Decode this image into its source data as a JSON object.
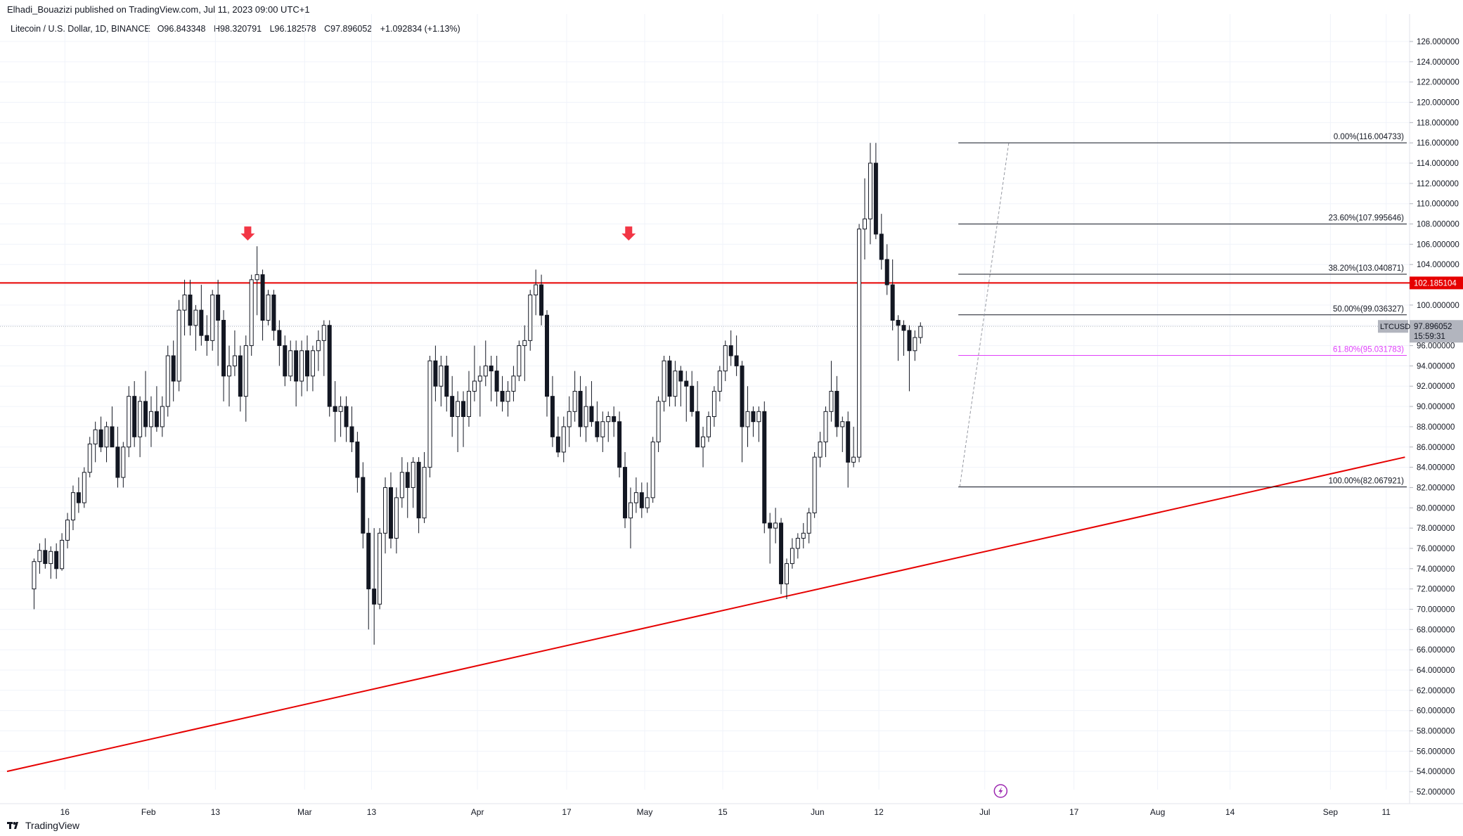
{
  "header": {
    "publish_line": "Elhadi_Bouazizi published on TradingView.com, Jul 11, 2023 09:00 UTC+1"
  },
  "legend": {
    "symbol_line": "Litecoin / U.S. Dollar, 1D, BINANCE",
    "open": "O96.843348",
    "high": "H98.320791",
    "low": "L96.182578",
    "close": "C97.896052",
    "change": "+1.092834 (+1.13%)"
  },
  "footer": {
    "brand": "TradingView"
  },
  "colors": {
    "up": "#ffffff",
    "down": "#131722",
    "outline": "#131722",
    "resistance": "#e60000",
    "trendline": "#e60000",
    "fib_line": "#131722",
    "fib_618": "#e040fb",
    "price_tag_bg": "#b2b5be",
    "grid": "#f0f3fa"
  },
  "chart_data": {
    "type": "candlestick",
    "symbol": "LTCUSD",
    "ylim": [
      52,
      127
    ],
    "y_ticks": [
      "126.000000",
      "124.000000",
      "122.000000",
      "120.000000",
      "118.000000",
      "116.000000",
      "114.000000",
      "112.000000",
      "110.000000",
      "108.000000",
      "106.000000",
      "104.000000",
      "102.000000",
      "100.000000",
      "98.000000",
      "96.000000",
      "94.000000",
      "92.000000",
      "90.000000",
      "88.000000",
      "86.000000",
      "84.000000",
      "82.000000",
      "80.000000",
      "78.000000",
      "76.000000",
      "74.000000",
      "72.000000",
      "70.000000",
      "68.000000",
      "66.000000",
      "64.000000",
      "62.000000",
      "60.000000",
      "58.000000",
      "56.000000",
      "54.000000",
      "52.000000"
    ],
    "y_tick_values": [
      126,
      124,
      122,
      120,
      118,
      116,
      114,
      112,
      110,
      108,
      106,
      104,
      102,
      100,
      98,
      96,
      94,
      92,
      90,
      88,
      86,
      84,
      82,
      80,
      78,
      76,
      74,
      72,
      70,
      68,
      66,
      64,
      62,
      60,
      58,
      56,
      54,
      52
    ],
    "x_ticks": [
      {
        "label": "16",
        "day": 10
      },
      {
        "label": "Feb",
        "day": 25
      },
      {
        "label": "13",
        "day": 37
      },
      {
        "label": "Mar",
        "day": 53
      },
      {
        "label": "13",
        "day": 65
      },
      {
        "label": "Apr",
        "day": 84
      },
      {
        "label": "17",
        "day": 100
      },
      {
        "label": "May",
        "day": 114
      },
      {
        "label": "15",
        "day": 128
      },
      {
        "label": "Jun",
        "day": 145
      },
      {
        "label": "12",
        "day": 156
      },
      {
        "label": "Jul",
        "day": 175
      },
      {
        "label": "17",
        "day": 191
      },
      {
        "label": "Aug",
        "day": 206
      },
      {
        "label": "14",
        "day": 219
      },
      {
        "label": "Sep",
        "day": 237
      },
      {
        "label": "11",
        "day": 247
      }
    ],
    "candles": [
      [
        72.0,
        75.0,
        70.0,
        74.7
      ],
      [
        74.7,
        76.5,
        73.5,
        75.8
      ],
      [
        75.8,
        77.0,
        74.0,
        74.5
      ],
      [
        74.5,
        76.2,
        73.0,
        75.7
      ],
      [
        75.7,
        76.5,
        73.0,
        74.0
      ],
      [
        74.0,
        77.5,
        73.8,
        76.8
      ],
      [
        76.8,
        79.5,
        76.0,
        78.8
      ],
      [
        78.8,
        82.2,
        77.8,
        81.5
      ],
      [
        81.5,
        83.0,
        79.5,
        80.5
      ],
      [
        80.5,
        84.0,
        80.0,
        83.5
      ],
      [
        83.5,
        87.0,
        83.0,
        86.3
      ],
      [
        86.3,
        88.5,
        84.5,
        87.7
      ],
      [
        87.7,
        89.0,
        85.5,
        86.0
      ],
      [
        86.0,
        88.5,
        84.5,
        88.0
      ],
      [
        88.0,
        90.0,
        86.0,
        86.0
      ],
      [
        86.0,
        88.0,
        82.0,
        83.0
      ],
      [
        83.0,
        86.5,
        82.0,
        86.0
      ],
      [
        86.0,
        92.0,
        85.0,
        91.0
      ],
      [
        91.0,
        92.5,
        86.0,
        87.0
      ],
      [
        87.0,
        91.0,
        85.0,
        90.5
      ],
      [
        90.5,
        93.5,
        87.0,
        88.0
      ],
      [
        88.0,
        91.0,
        86.0,
        89.5
      ],
      [
        89.5,
        92.0,
        87.5,
        88.0
      ],
      [
        88.0,
        91.0,
        87.0,
        90.0
      ],
      [
        90.0,
        96.0,
        89.0,
        95.0
      ],
      [
        95.0,
        96.5,
        90.5,
        92.5
      ],
      [
        92.5,
        100.5,
        91.5,
        99.5
      ],
      [
        99.5,
        102.5,
        97.0,
        101.0
      ],
      [
        101.0,
        102.5,
        97.0,
        98.0
      ],
      [
        98.0,
        100.0,
        95.5,
        99.5
      ],
      [
        99.5,
        102.0,
        96.0,
        97.0
      ],
      [
        97.0,
        99.0,
        95.0,
        96.5
      ],
      [
        96.5,
        101.5,
        95.5,
        101.0
      ],
      [
        101.0,
        102.5,
        94.0,
        98.5
      ],
      [
        98.5,
        99.5,
        90.5,
        93.0
      ],
      [
        93.0,
        96.0,
        90.0,
        94.0
      ],
      [
        94.0,
        97.5,
        93.0,
        95.0
      ],
      [
        95.0,
        96.0,
        89.5,
        91.0
      ],
      [
        91.0,
        97.0,
        88.5,
        96.0
      ],
      [
        96.0,
        103.0,
        95.0,
        102.5
      ],
      [
        102.5,
        105.8,
        99.0,
        103.0
      ],
      [
        103.0,
        103.5,
        96.5,
        98.5
      ],
      [
        98.5,
        101.5,
        98.0,
        101.0
      ],
      [
        101.0,
        101.5,
        96.5,
        97.5
      ],
      [
        97.5,
        98.5,
        94.0,
        96.0
      ],
      [
        96.0,
        97.0,
        92.0,
        93.0
      ],
      [
        93.0,
        96.5,
        92.5,
        95.5
      ],
      [
        95.5,
        96.5,
        90.0,
        92.5
      ],
      [
        92.5,
        96.5,
        91.0,
        95.5
      ],
      [
        95.5,
        97.0,
        91.5,
        93.0
      ],
      [
        93.0,
        96.0,
        91.5,
        95.5
      ],
      [
        95.5,
        97.5,
        93.5,
        96.5
      ],
      [
        96.5,
        98.5,
        93.0,
        98.0
      ],
      [
        98.0,
        98.5,
        89.0,
        90.0
      ],
      [
        90.0,
        92.5,
        86.5,
        89.5
      ],
      [
        89.5,
        91.0,
        87.0,
        90.0
      ],
      [
        90.0,
        91.0,
        86.5,
        88.0
      ],
      [
        88.0,
        90.0,
        85.5,
        86.5
      ],
      [
        86.5,
        87.5,
        81.5,
        83.0
      ],
      [
        83.0,
        84.5,
        76.0,
        77.5
      ],
      [
        77.5,
        79.0,
        68.0,
        72.0
      ],
      [
        72.0,
        78.0,
        66.5,
        70.5
      ],
      [
        70.5,
        78.0,
        70.0,
        77.5
      ],
      [
        77.5,
        83.0,
        75.5,
        82.0
      ],
      [
        82.0,
        83.5,
        76.0,
        77.0
      ],
      [
        77.0,
        82.0,
        75.5,
        81.0
      ],
      [
        81.0,
        85.0,
        80.0,
        83.5
      ],
      [
        83.5,
        84.5,
        79.0,
        82.0
      ],
      [
        82.0,
        85.0,
        80.0,
        84.5
      ],
      [
        84.5,
        85.0,
        77.5,
        79.0
      ],
      [
        79.0,
        85.5,
        78.5,
        84.0
      ],
      [
        84.0,
        95.0,
        83.0,
        94.5
      ],
      [
        94.5,
        96.0,
        90.5,
        92.0
      ],
      [
        92.0,
        95.0,
        90.0,
        94.0
      ],
      [
        94.0,
        95.0,
        89.5,
        91.0
      ],
      [
        91.0,
        93.0,
        87.0,
        89.0
      ],
      [
        89.0,
        91.5,
        85.5,
        90.5
      ],
      [
        90.5,
        91.5,
        86.0,
        89.0
      ],
      [
        89.0,
        93.5,
        88.0,
        91.5
      ],
      [
        91.5,
        96.0,
        90.5,
        92.5
      ],
      [
        92.5,
        94.0,
        89.0,
        93.0
      ],
      [
        93.0,
        96.5,
        92.0,
        94.0
      ],
      [
        94.0,
        95.0,
        90.5,
        93.5
      ],
      [
        93.5,
        95.0,
        90.0,
        91.5
      ],
      [
        91.5,
        93.0,
        89.5,
        90.5
      ],
      [
        90.5,
        92.5,
        89.0,
        91.5
      ],
      [
        91.5,
        94.0,
        90.5,
        93.0
      ],
      [
        93.0,
        96.5,
        92.5,
        96.0
      ],
      [
        96.0,
        98.0,
        92.5,
        96.5
      ],
      [
        96.5,
        101.5,
        95.5,
        101.0
      ],
      [
        101.0,
        103.5,
        99.0,
        102.0
      ],
      [
        102.0,
        103.0,
        98.0,
        99.0
      ],
      [
        99.0,
        99.5,
        89.0,
        91.0
      ],
      [
        91.0,
        93.0,
        86.0,
        87.0
      ],
      [
        87.0,
        89.0,
        85.0,
        85.5
      ],
      [
        85.5,
        89.0,
        84.5,
        88.0
      ],
      [
        88.0,
        91.0,
        86.0,
        89.5
      ],
      [
        89.5,
        93.5,
        88.5,
        91.5
      ],
      [
        91.5,
        93.0,
        87.0,
        88.0
      ],
      [
        88.0,
        92.0,
        86.5,
        90.0
      ],
      [
        90.0,
        92.5,
        88.0,
        88.5
      ],
      [
        88.5,
        90.5,
        86.5,
        87.0
      ],
      [
        87.0,
        89.5,
        85.5,
        88.5
      ],
      [
        88.5,
        89.5,
        86.5,
        89.0
      ],
      [
        89.0,
        90.0,
        87.0,
        88.5
      ],
      [
        88.5,
        89.5,
        83.0,
        84.0
      ],
      [
        84.0,
        85.5,
        78.0,
        79.0
      ],
      [
        79.0,
        82.0,
        76.0,
        80.5
      ],
      [
        80.5,
        83.0,
        79.5,
        81.5
      ],
      [
        81.5,
        82.5,
        79.0,
        80.0
      ],
      [
        80.0,
        82.5,
        79.5,
        81.0
      ],
      [
        81.0,
        87.0,
        80.5,
        86.5
      ],
      [
        86.5,
        91.0,
        85.5,
        90.5
      ],
      [
        90.5,
        95.0,
        89.5,
        94.5
      ],
      [
        94.5,
        95.0,
        90.0,
        91.0
      ],
      [
        91.0,
        94.5,
        90.0,
        93.5
      ],
      [
        93.5,
        94.0,
        90.0,
        92.5
      ],
      [
        92.5,
        93.5,
        88.5,
        92.0
      ],
      [
        92.0,
        93.5,
        89.0,
        89.5
      ],
      [
        89.5,
        92.5,
        86.0,
        86.0
      ],
      [
        86.0,
        88.0,
        84.0,
        87.0
      ],
      [
        87.0,
        89.5,
        86.5,
        89.0
      ],
      [
        89.0,
        92.0,
        88.0,
        91.5
      ],
      [
        91.5,
        94.0,
        90.5,
        93.5
      ],
      [
        93.5,
        96.5,
        92.5,
        96.0
      ],
      [
        96.0,
        97.5,
        94.0,
        95.0
      ],
      [
        95.0,
        97.0,
        93.0,
        94.0
      ],
      [
        94.0,
        94.5,
        84.5,
        88.0
      ],
      [
        88.0,
        92.0,
        86.0,
        89.5
      ],
      [
        89.5,
        90.0,
        87.0,
        88.5
      ],
      [
        88.5,
        90.0,
        86.5,
        89.5
      ],
      [
        89.5,
        90.5,
        77.5,
        78.5
      ],
      [
        78.5,
        79.5,
        74.5,
        78.0
      ],
      [
        78.0,
        80.0,
        76.5,
        78.5
      ],
      [
        78.5,
        79.0,
        71.5,
        72.5
      ],
      [
        72.5,
        75.0,
        71.0,
        74.5
      ],
      [
        74.5,
        77.0,
        74.0,
        76.0
      ],
      [
        76.0,
        77.5,
        75.0,
        77.0
      ],
      [
        77.0,
        78.5,
        76.0,
        77.5
      ],
      [
        77.5,
        80.0,
        76.5,
        79.5
      ],
      [
        79.5,
        85.5,
        79.0,
        85.0
      ],
      [
        85.0,
        87.5,
        84.0,
        86.5
      ],
      [
        86.5,
        90.0,
        85.0,
        89.5
      ],
      [
        89.5,
        94.5,
        88.5,
        91.5
      ],
      [
        91.5,
        93.0,
        87.0,
        88.0
      ],
      [
        88.0,
        89.0,
        85.5,
        88.5
      ],
      [
        88.5,
        89.5,
        82.0,
        84.5
      ],
      [
        84.5,
        88.0,
        84.0,
        85.0
      ],
      [
        85.0,
        108.0,
        84.5,
        107.5
      ],
      [
        107.5,
        112.5,
        104.5,
        108.5
      ],
      [
        108.5,
        116.0,
        106.0,
        114.0
      ],
      [
        114.0,
        116.0,
        106.5,
        107.0
      ],
      [
        107.0,
        109.0,
        103.5,
        104.5
      ],
      [
        104.5,
        106.0,
        101.0,
        102.0
      ],
      [
        102.0,
        104.5,
        97.5,
        98.5
      ],
      [
        98.5,
        99.0,
        94.5,
        98.0
      ],
      [
        98.0,
        98.5,
        95.0,
        97.5
      ],
      [
        97.5,
        98.0,
        91.5,
        95.5
      ],
      [
        95.5,
        97.5,
        94.5,
        96.8
      ],
      [
        96.8,
        98.3,
        96.2,
        97.9
      ]
    ],
    "x_offset": 8,
    "resistance": 102.185104,
    "last_price": 97.896052,
    "last_price_label": "97.896052",
    "resistance_label": "102.185104",
    "countdown": "15:59:31",
    "trendline": {
      "start": [
        0,
        54.0
      ],
      "end": [
        251,
        85.0
      ]
    },
    "arrow_markers": [
      {
        "day": 37,
        "price": 106.5
      },
      {
        "day": 96,
        "price": 106.5
      }
    ],
    "fibonacci": [
      {
        "label": "0.00%(116.004733)",
        "value": 116.004733
      },
      {
        "label": "23.60%(107.995646)",
        "value": 107.995646
      },
      {
        "label": "38.20%(103.040871)",
        "value": 103.040871
      },
      {
        "label": "50.00%(99.036327)",
        "value": 99.036327
      },
      {
        "label": "61.80%(95.031783)",
        "value": 95.031783
      },
      {
        "label": "100.00%(82.067921)",
        "value": 82.067921
      }
    ],
    "fib_range_days": [
      169,
      251
    ],
    "fib_anchor": {
      "low_day": 169,
      "low": 82.067921,
      "high_day": 173,
      "high": 116.004733
    }
  }
}
